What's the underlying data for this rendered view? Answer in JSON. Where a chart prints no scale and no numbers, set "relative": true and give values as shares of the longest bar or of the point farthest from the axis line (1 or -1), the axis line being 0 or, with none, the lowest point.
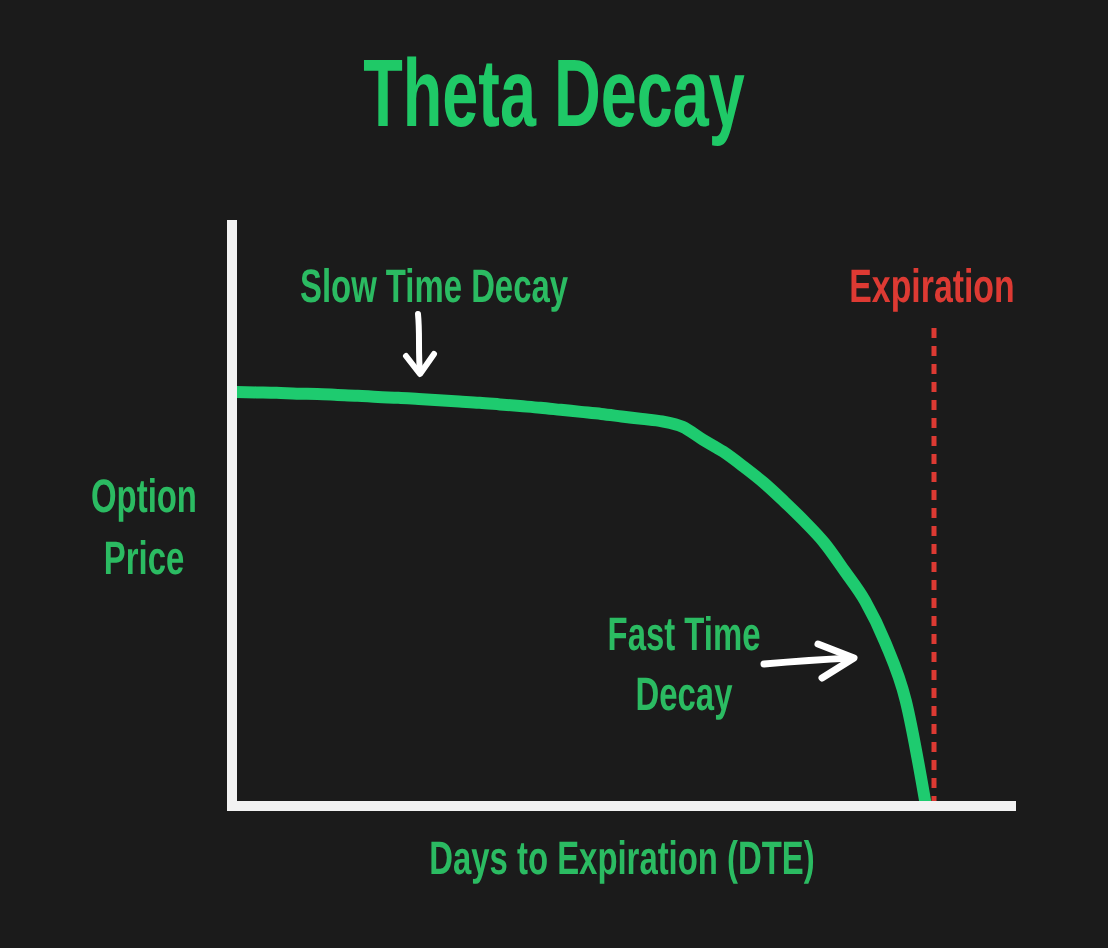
{
  "chart_data": {
    "type": "line",
    "title": "Theta Decay",
    "xlabel": "Days to Expiration (DTE)",
    "ylabel": "Option Price",
    "relative": true,
    "categories": [
      null,
      null,
      null,
      null,
      null,
      null,
      null,
      null,
      null,
      null,
      null,
      null,
      null,
      null,
      null,
      null,
      null,
      null,
      null,
      null,
      null,
      null,
      null,
      null,
      null,
      null,
      null,
      null,
      null,
      null,
      null,
      null,
      null,
      null,
      null
    ],
    "series": [
      {
        "color": "#1ecb6f",
        "values": [
          1,
          0.999,
          0.998,
          0.996,
          0.995,
          0.993,
          0.991,
          0.988,
          0.986,
          0.983,
          0.98,
          0.977,
          0.974,
          0.97,
          0.966,
          0.962,
          0.957,
          0.952,
          0.947,
          0.941,
          0.935,
          0.929,
          0.916,
          0.885,
          0.856,
          0.82,
          0.781,
          0.736,
          0.688,
          0.635,
          0.567,
          0.495,
          0.394,
          0.255,
          0
        ]
      }
    ],
    "annotations": [
      "Slow Time Decay",
      "Expiration",
      "Fast Time Decay"
    ]
  }
}
